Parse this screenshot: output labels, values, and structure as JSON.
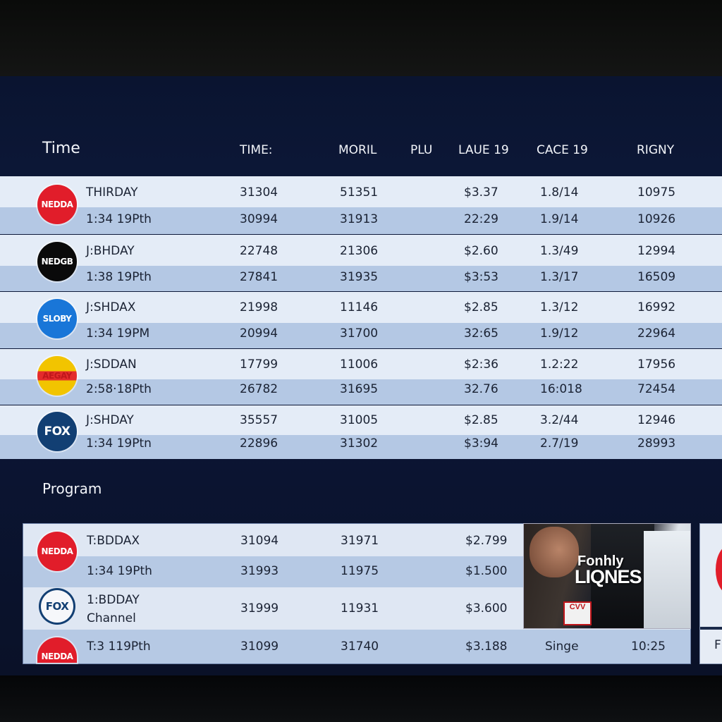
{
  "header": {
    "title": "Time",
    "columns": [
      "TIME:",
      "MORIL",
      "PLU",
      "LAUE 19",
      "CACE 19",
      "RIGNY"
    ]
  },
  "channels": [
    {
      "logo_text": "NEDDA",
      "logo_icon": "nedda-logo-icon",
      "rows": [
        {
          "label": "THIRDAY",
          "c1": "31304",
          "c2": "51351",
          "c3": "$3.37",
          "c4": "1.8/14",
          "c5": "10975"
        },
        {
          "label": "1:34 19Pth",
          "c1": "30994",
          "c2": "31913",
          "c3": "22:29",
          "c4": "1.9/14",
          "c5": "10926"
        }
      ]
    },
    {
      "logo_text": "NEDGB",
      "logo_icon": "nedgb-logo-icon",
      "rows": [
        {
          "label": "J:BHDAY",
          "c1": "22748",
          "c2": "21306",
          "c3": "$2.60",
          "c4": "1.3/49",
          "c5": "12994"
        },
        {
          "label": "1:38 19Pth",
          "c1": "27841",
          "c2": "31935",
          "c3": "$3:53",
          "c4": "1.3/17",
          "c5": "16509"
        }
      ]
    },
    {
      "logo_text": "SLOBY",
      "logo_icon": "sloby-logo-icon",
      "rows": [
        {
          "label": "J:SHDAX",
          "c1": "21998",
          "c2": "11146",
          "c3": "$2.85",
          "c4": "1.3/12",
          "c5": "16992"
        },
        {
          "label": "1:34 19PM",
          "c1": "20994",
          "c2": "31700",
          "c3": "32:65",
          "c4": "1.9/12",
          "c5": "22964"
        }
      ]
    },
    {
      "logo_text": "AEGAY",
      "logo_icon": "aegay-logo-icon",
      "rows": [
        {
          "label": "J:SDDAN",
          "c1": "17799",
          "c2": "11006",
          "c3": "$2:36",
          "c4": "1.2:22",
          "c5": "17956"
        },
        {
          "label": "2:58·18Pth",
          "c1": "26782",
          "c2": "31695",
          "c3": "32.76",
          "c4": "16:018",
          "c5": "72454"
        }
      ]
    },
    {
      "logo_text": "FOX",
      "logo_icon": "fox-logo-icon",
      "rows": [
        {
          "label": "J:SHDAY",
          "c1": "35557",
          "c2": "31005",
          "c3": "$2.85",
          "c4": "3.2/44",
          "c5": "12946"
        },
        {
          "label": "1:34 19Ptn",
          "c1": "22896",
          "c2": "31302",
          "c3": "$3:94",
          "c4": "2.7/19",
          "c5": "28993"
        }
      ]
    }
  ],
  "program": {
    "title": "Program",
    "rows": [
      {
        "logo_text": "NEDDA",
        "label": "T:BDDAX",
        "c1": "31094",
        "c2": "31971",
        "c3": "$2.799"
      },
      {
        "logo_text": "",
        "label": "1:34 19Pth",
        "c1": "31993",
        "c2": "11975",
        "c3": "$1.500"
      },
      {
        "logo_text": "FOX",
        "label": "1:BDDAY",
        "label2": "Channel",
        "c1": "31999",
        "c2": "11931",
        "c3": "$3.600"
      },
      {
        "logo_text": "NEDDA",
        "label": "T:3 119Pth",
        "c1": "31099",
        "c2": "31740",
        "c3": "$3.188",
        "c4": "Singe",
        "c5": "10:25"
      }
    ],
    "thumbnail": {
      "line1": "Fonhly",
      "line2": "LIQNES",
      "badge": "CVV"
    },
    "side_letter": "F"
  }
}
